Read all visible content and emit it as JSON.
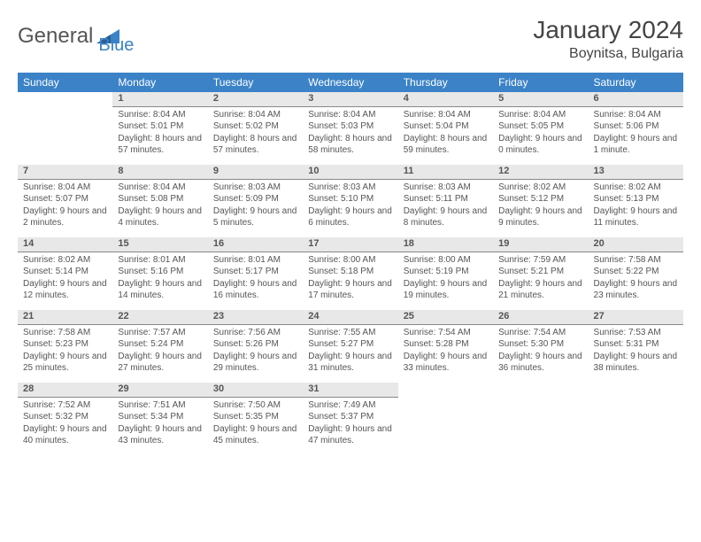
{
  "logo": {
    "text1": "General",
    "text2": "Blue"
  },
  "title": "January 2024",
  "location": "Boynitsa, Bulgaria",
  "columns": [
    "Sunday",
    "Monday",
    "Tuesday",
    "Wednesday",
    "Thursday",
    "Friday",
    "Saturday"
  ],
  "colors": {
    "header_bg": "#3b82c7",
    "header_fg": "#ffffff",
    "daynum_bg": "#e8e8e8",
    "daynum_border": "#888888",
    "text": "#555555",
    "title_color": "#444444"
  },
  "weeks": [
    [
      null,
      {
        "n": "1",
        "sr": "8:04 AM",
        "ss": "5:01 PM",
        "dl": "8 hours and 57 minutes."
      },
      {
        "n": "2",
        "sr": "8:04 AM",
        "ss": "5:02 PM",
        "dl": "8 hours and 57 minutes."
      },
      {
        "n": "3",
        "sr": "8:04 AM",
        "ss": "5:03 PM",
        "dl": "8 hours and 58 minutes."
      },
      {
        "n": "4",
        "sr": "8:04 AM",
        "ss": "5:04 PM",
        "dl": "8 hours and 59 minutes."
      },
      {
        "n": "5",
        "sr": "8:04 AM",
        "ss": "5:05 PM",
        "dl": "9 hours and 0 minutes."
      },
      {
        "n": "6",
        "sr": "8:04 AM",
        "ss": "5:06 PM",
        "dl": "9 hours and 1 minute."
      }
    ],
    [
      {
        "n": "7",
        "sr": "8:04 AM",
        "ss": "5:07 PM",
        "dl": "9 hours and 2 minutes."
      },
      {
        "n": "8",
        "sr": "8:04 AM",
        "ss": "5:08 PM",
        "dl": "9 hours and 4 minutes."
      },
      {
        "n": "9",
        "sr": "8:03 AM",
        "ss": "5:09 PM",
        "dl": "9 hours and 5 minutes."
      },
      {
        "n": "10",
        "sr": "8:03 AM",
        "ss": "5:10 PM",
        "dl": "9 hours and 6 minutes."
      },
      {
        "n": "11",
        "sr": "8:03 AM",
        "ss": "5:11 PM",
        "dl": "9 hours and 8 minutes."
      },
      {
        "n": "12",
        "sr": "8:02 AM",
        "ss": "5:12 PM",
        "dl": "9 hours and 9 minutes."
      },
      {
        "n": "13",
        "sr": "8:02 AM",
        "ss": "5:13 PM",
        "dl": "9 hours and 11 minutes."
      }
    ],
    [
      {
        "n": "14",
        "sr": "8:02 AM",
        "ss": "5:14 PM",
        "dl": "9 hours and 12 minutes."
      },
      {
        "n": "15",
        "sr": "8:01 AM",
        "ss": "5:16 PM",
        "dl": "9 hours and 14 minutes."
      },
      {
        "n": "16",
        "sr": "8:01 AM",
        "ss": "5:17 PM",
        "dl": "9 hours and 16 minutes."
      },
      {
        "n": "17",
        "sr": "8:00 AM",
        "ss": "5:18 PM",
        "dl": "9 hours and 17 minutes."
      },
      {
        "n": "18",
        "sr": "8:00 AM",
        "ss": "5:19 PM",
        "dl": "9 hours and 19 minutes."
      },
      {
        "n": "19",
        "sr": "7:59 AM",
        "ss": "5:21 PM",
        "dl": "9 hours and 21 minutes."
      },
      {
        "n": "20",
        "sr": "7:58 AM",
        "ss": "5:22 PM",
        "dl": "9 hours and 23 minutes."
      }
    ],
    [
      {
        "n": "21",
        "sr": "7:58 AM",
        "ss": "5:23 PM",
        "dl": "9 hours and 25 minutes."
      },
      {
        "n": "22",
        "sr": "7:57 AM",
        "ss": "5:24 PM",
        "dl": "9 hours and 27 minutes."
      },
      {
        "n": "23",
        "sr": "7:56 AM",
        "ss": "5:26 PM",
        "dl": "9 hours and 29 minutes."
      },
      {
        "n": "24",
        "sr": "7:55 AM",
        "ss": "5:27 PM",
        "dl": "9 hours and 31 minutes."
      },
      {
        "n": "25",
        "sr": "7:54 AM",
        "ss": "5:28 PM",
        "dl": "9 hours and 33 minutes."
      },
      {
        "n": "26",
        "sr": "7:54 AM",
        "ss": "5:30 PM",
        "dl": "9 hours and 36 minutes."
      },
      {
        "n": "27",
        "sr": "7:53 AM",
        "ss": "5:31 PM",
        "dl": "9 hours and 38 minutes."
      }
    ],
    [
      {
        "n": "28",
        "sr": "7:52 AM",
        "ss": "5:32 PM",
        "dl": "9 hours and 40 minutes."
      },
      {
        "n": "29",
        "sr": "7:51 AM",
        "ss": "5:34 PM",
        "dl": "9 hours and 43 minutes."
      },
      {
        "n": "30",
        "sr": "7:50 AM",
        "ss": "5:35 PM",
        "dl": "9 hours and 45 minutes."
      },
      {
        "n": "31",
        "sr": "7:49 AM",
        "ss": "5:37 PM",
        "dl": "9 hours and 47 minutes."
      },
      null,
      null,
      null
    ]
  ],
  "labels": {
    "sunrise": "Sunrise:",
    "sunset": "Sunset:",
    "daylight": "Daylight:"
  }
}
